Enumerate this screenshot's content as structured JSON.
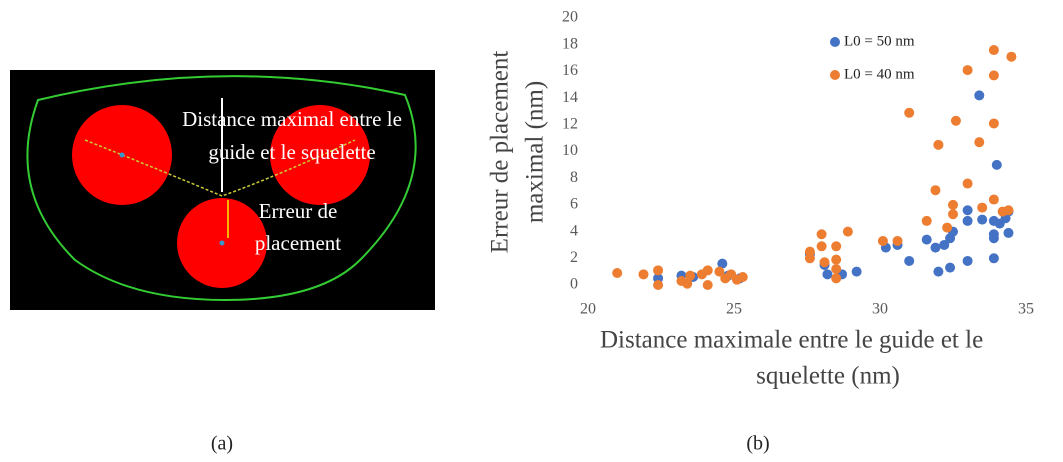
{
  "panel_a": {
    "label_distance": [
      "Distance maximal entre le",
      "guide et le squelette"
    ],
    "label_error": [
      "Erreur de",
      "placement"
    ],
    "caption": "(a)"
  },
  "caption_b": "(b)",
  "chart_data": {
    "type": "scatter",
    "xlabel": [
      "Distance maximale  entre le guide et le",
      "squelette (nm)"
    ],
    "ylabel": [
      "Erreur de placement",
      "maximal (nm)"
    ],
    "xlim": [
      20,
      35
    ],
    "xticks": [
      20,
      25,
      30,
      35
    ],
    "ylim": [
      0,
      20
    ],
    "yticks": [
      0,
      2,
      4,
      6,
      8,
      10,
      12,
      14,
      16,
      18,
      20
    ],
    "grid": false,
    "legend": "top",
    "series": [
      {
        "name": "L0 = 50 nm",
        "color": "#4472c4",
        "x": [
          22.4,
          23.2,
          23.6,
          24.6,
          24.8,
          25.2,
          27.6,
          28.1,
          28.2,
          28.7,
          29.2,
          30.2,
          30.6,
          31.0,
          31.6,
          31.9,
          32.0,
          32.2,
          32.4,
          32.5,
          32.4,
          33.0,
          33.0,
          33.0,
          33.4,
          33.5,
          33.9,
          33.9,
          33.9,
          33.9,
          34.0,
          34.1,
          34.3,
          34.4,
          34.4
        ],
        "values": [
          0.5,
          0.7,
          0.6,
          1.6,
          0.7,
          0.5,
          2.3,
          1.5,
          0.8,
          0.8,
          1.0,
          2.8,
          3.0,
          1.8,
          3.4,
          2.8,
          1.0,
          3.0,
          3.5,
          4.0,
          1.3,
          1.8,
          4.8,
          5.6,
          14.2,
          4.9,
          2.0,
          3.5,
          3.8,
          4.8,
          9.0,
          4.6,
          5.0,
          3.9,
          5.5
        ]
      },
      {
        "name": "L0 = 40 nm",
        "color": "#ed7d31",
        "x": [
          21.0,
          21.9,
          22.4,
          22.4,
          23.2,
          23.4,
          23.5,
          23.9,
          24.1,
          24.1,
          24.5,
          24.7,
          24.9,
          25.1,
          25.3,
          27.6,
          27.6,
          28.0,
          28.0,
          28.1,
          28.5,
          28.5,
          28.5,
          28.5,
          28.9,
          30.1,
          30.6,
          31.0,
          31.6,
          31.9,
          32.0,
          32.3,
          32.5,
          32.5,
          32.6,
          33.0,
          33.0,
          33.4,
          33.5,
          33.9,
          33.9,
          33.9,
          33.9,
          34.2,
          34.4,
          34.5
        ],
        "values": [
          0.9,
          0.8,
          1.1,
          0.0,
          0.3,
          0.1,
          0.7,
          0.8,
          1.1,
          0.0,
          1.0,
          0.5,
          0.8,
          0.4,
          0.6,
          2.0,
          2.5,
          3.8,
          2.9,
          1.7,
          2.9,
          1.9,
          1.2,
          0.5,
          4.0,
          3.3,
          3.3,
          12.9,
          4.8,
          7.1,
          10.5,
          4.3,
          5.3,
          6.0,
          12.3,
          16.1,
          7.6,
          10.7,
          5.8,
          17.6,
          15.7,
          12.1,
          6.4,
          5.5,
          5.6,
          17.1
        ]
      }
    ]
  }
}
